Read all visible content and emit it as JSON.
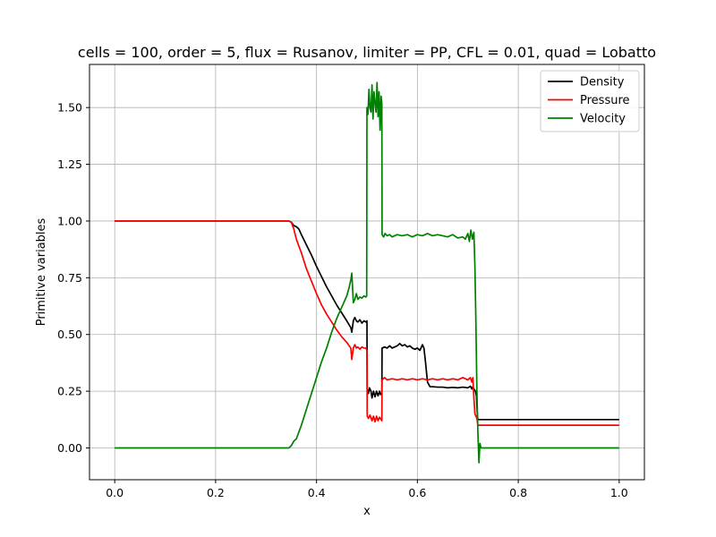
{
  "chart_data": {
    "type": "line",
    "title": "cells = 100, order = 5, flux = Rusanov, limiter = PP, CFL = 0.01, quad = Lobatto",
    "xlabel": "x",
    "ylabel": "Primitive variables",
    "xlim": [
      -0.05,
      1.05
    ],
    "ylim": [
      -0.14,
      1.69
    ],
    "xticks": [
      0.0,
      0.2,
      0.4,
      0.6,
      0.8,
      1.0
    ],
    "xtick_labels": [
      "0.0",
      "0.2",
      "0.4",
      "0.6",
      "0.8",
      "1.0"
    ],
    "yticks": [
      0.0,
      0.25,
      0.5,
      0.75,
      1.0,
      1.25,
      1.5
    ],
    "ytick_labels": [
      "0.00",
      "0.25",
      "0.50",
      "0.75",
      "1.00",
      "1.25",
      "1.50"
    ],
    "grid": true,
    "legend_position": "top-right",
    "series": [
      {
        "name": "Density",
        "color": "#000000",
        "points": [
          [
            0.0,
            1.0
          ],
          [
            0.345,
            1.0
          ],
          [
            0.35,
            0.995
          ],
          [
            0.355,
            0.98
          ],
          [
            0.36,
            0.975
          ],
          [
            0.365,
            0.965
          ],
          [
            0.37,
            0.94
          ],
          [
            0.38,
            0.895
          ],
          [
            0.39,
            0.85
          ],
          [
            0.4,
            0.8
          ],
          [
            0.41,
            0.755
          ],
          [
            0.42,
            0.71
          ],
          [
            0.43,
            0.67
          ],
          [
            0.44,
            0.63
          ],
          [
            0.45,
            0.595
          ],
          [
            0.46,
            0.56
          ],
          [
            0.468,
            0.53
          ],
          [
            0.47,
            0.51
          ],
          [
            0.473,
            0.56
          ],
          [
            0.476,
            0.575
          ],
          [
            0.479,
            0.56
          ],
          [
            0.482,
            0.555
          ],
          [
            0.486,
            0.565
          ],
          [
            0.49,
            0.55
          ],
          [
            0.494,
            0.56
          ],
          [
            0.498,
            0.555
          ],
          [
            0.5,
            0.56
          ],
          [
            0.5005,
            0.26
          ],
          [
            0.503,
            0.24
          ],
          [
            0.505,
            0.265
          ],
          [
            0.508,
            0.25
          ],
          [
            0.51,
            0.22
          ],
          [
            0.513,
            0.25
          ],
          [
            0.516,
            0.225
          ],
          [
            0.519,
            0.25
          ],
          [
            0.522,
            0.23
          ],
          [
            0.525,
            0.25
          ],
          [
            0.527,
            0.235
          ],
          [
            0.5295,
            0.24
          ],
          [
            0.53,
            0.44
          ],
          [
            0.535,
            0.445
          ],
          [
            0.54,
            0.44
          ],
          [
            0.545,
            0.45
          ],
          [
            0.55,
            0.44
          ],
          [
            0.56,
            0.45
          ],
          [
            0.565,
            0.46
          ],
          [
            0.57,
            0.45
          ],
          [
            0.575,
            0.455
          ],
          [
            0.58,
            0.445
          ],
          [
            0.585,
            0.45
          ],
          [
            0.59,
            0.44
          ],
          [
            0.595,
            0.435
          ],
          [
            0.6,
            0.44
          ],
          [
            0.605,
            0.43
          ],
          [
            0.61,
            0.455
          ],
          [
            0.613,
            0.44
          ],
          [
            0.616,
            0.38
          ],
          [
            0.62,
            0.29
          ],
          [
            0.625,
            0.27
          ],
          [
            0.63,
            0.27
          ],
          [
            0.64,
            0.268
          ],
          [
            0.65,
            0.268
          ],
          [
            0.66,
            0.265
          ],
          [
            0.67,
            0.267
          ],
          [
            0.68,
            0.265
          ],
          [
            0.69,
            0.268
          ],
          [
            0.7,
            0.265
          ],
          [
            0.705,
            0.272
          ],
          [
            0.708,
            0.26
          ],
          [
            0.71,
            0.27
          ],
          [
            0.712,
            0.26
          ],
          [
            0.715,
            0.25
          ],
          [
            0.717,
            0.23
          ],
          [
            0.719,
            0.14
          ],
          [
            0.72,
            0.125
          ],
          [
            0.73,
            0.125
          ],
          [
            1.0,
            0.125
          ]
        ]
      },
      {
        "name": "Pressure",
        "color": "#ff0000",
        "points": [
          [
            0.0,
            1.0
          ],
          [
            0.345,
            1.0
          ],
          [
            0.35,
            0.995
          ],
          [
            0.355,
            0.965
          ],
          [
            0.36,
            0.92
          ],
          [
            0.37,
            0.86
          ],
          [
            0.38,
            0.79
          ],
          [
            0.39,
            0.735
          ],
          [
            0.4,
            0.68
          ],
          [
            0.41,
            0.63
          ],
          [
            0.42,
            0.59
          ],
          [
            0.43,
            0.555
          ],
          [
            0.44,
            0.52
          ],
          [
            0.45,
            0.49
          ],
          [
            0.46,
            0.465
          ],
          [
            0.468,
            0.44
          ],
          [
            0.47,
            0.39
          ],
          [
            0.473,
            0.44
          ],
          [
            0.476,
            0.455
          ],
          [
            0.479,
            0.44
          ],
          [
            0.482,
            0.445
          ],
          [
            0.486,
            0.435
          ],
          [
            0.49,
            0.445
          ],
          [
            0.494,
            0.44
          ],
          [
            0.498,
            0.44
          ],
          [
            0.5,
            0.43
          ],
          [
            0.5005,
            0.14
          ],
          [
            0.503,
            0.13
          ],
          [
            0.506,
            0.145
          ],
          [
            0.51,
            0.12
          ],
          [
            0.513,
            0.14
          ],
          [
            0.516,
            0.115
          ],
          [
            0.519,
            0.14
          ],
          [
            0.522,
            0.12
          ],
          [
            0.525,
            0.135
          ],
          [
            0.5295,
            0.12
          ],
          [
            0.53,
            0.3
          ],
          [
            0.535,
            0.31
          ],
          [
            0.54,
            0.3
          ],
          [
            0.55,
            0.305
          ],
          [
            0.56,
            0.3
          ],
          [
            0.57,
            0.305
          ],
          [
            0.58,
            0.3
          ],
          [
            0.59,
            0.305
          ],
          [
            0.6,
            0.3
          ],
          [
            0.61,
            0.305
          ],
          [
            0.62,
            0.3
          ],
          [
            0.63,
            0.305
          ],
          [
            0.64,
            0.3
          ],
          [
            0.65,
            0.305
          ],
          [
            0.66,
            0.3
          ],
          [
            0.67,
            0.305
          ],
          [
            0.68,
            0.3
          ],
          [
            0.69,
            0.31
          ],
          [
            0.7,
            0.3
          ],
          [
            0.705,
            0.31
          ],
          [
            0.708,
            0.29
          ],
          [
            0.71,
            0.31
          ],
          [
            0.712,
            0.22
          ],
          [
            0.714,
            0.15
          ],
          [
            0.716,
            0.14
          ],
          [
            0.718,
            0.13
          ],
          [
            0.72,
            0.1
          ],
          [
            0.73,
            0.1
          ],
          [
            1.0,
            0.1
          ]
        ]
      },
      {
        "name": "Velocity",
        "color": "#008000",
        "points": [
          [
            0.0,
            0.0
          ],
          [
            0.345,
            0.0
          ],
          [
            0.35,
            0.01
          ],
          [
            0.355,
            0.03
          ],
          [
            0.36,
            0.04
          ],
          [
            0.37,
            0.1
          ],
          [
            0.38,
            0.17
          ],
          [
            0.39,
            0.24
          ],
          [
            0.4,
            0.31
          ],
          [
            0.41,
            0.38
          ],
          [
            0.42,
            0.44
          ],
          [
            0.43,
            0.51
          ],
          [
            0.44,
            0.57
          ],
          [
            0.45,
            0.62
          ],
          [
            0.46,
            0.67
          ],
          [
            0.465,
            0.71
          ],
          [
            0.468,
            0.74
          ],
          [
            0.47,
            0.77
          ],
          [
            0.473,
            0.64
          ],
          [
            0.476,
            0.655
          ],
          [
            0.479,
            0.68
          ],
          [
            0.482,
            0.655
          ],
          [
            0.486,
            0.665
          ],
          [
            0.49,
            0.66
          ],
          [
            0.494,
            0.67
          ],
          [
            0.498,
            0.665
          ],
          [
            0.4995,
            0.67
          ],
          [
            0.5,
            1.5
          ],
          [
            0.502,
            1.47
          ],
          [
            0.504,
            1.58
          ],
          [
            0.506,
            1.5
          ],
          [
            0.508,
            1.48
          ],
          [
            0.51,
            1.6
          ],
          [
            0.512,
            1.45
          ],
          [
            0.514,
            1.57
          ],
          [
            0.516,
            1.52
          ],
          [
            0.518,
            1.48
          ],
          [
            0.52,
            1.61
          ],
          [
            0.522,
            1.46
          ],
          [
            0.524,
            1.57
          ],
          [
            0.526,
            1.4
          ],
          [
            0.528,
            1.55
          ],
          [
            0.5295,
            1.52
          ],
          [
            0.53,
            0.94
          ],
          [
            0.533,
            0.93
          ],
          [
            0.536,
            0.945
          ],
          [
            0.54,
            0.935
          ],
          [
            0.545,
            0.94
          ],
          [
            0.55,
            0.93
          ],
          [
            0.56,
            0.94
          ],
          [
            0.57,
            0.935
          ],
          [
            0.58,
            0.94
          ],
          [
            0.59,
            0.93
          ],
          [
            0.6,
            0.94
          ],
          [
            0.61,
            0.935
          ],
          [
            0.62,
            0.945
          ],
          [
            0.63,
            0.935
          ],
          [
            0.64,
            0.94
          ],
          [
            0.65,
            0.935
          ],
          [
            0.66,
            0.93
          ],
          [
            0.67,
            0.94
          ],
          [
            0.68,
            0.925
          ],
          [
            0.69,
            0.93
          ],
          [
            0.695,
            0.92
          ],
          [
            0.7,
            0.945
          ],
          [
            0.703,
            0.91
          ],
          [
            0.706,
            0.96
          ],
          [
            0.709,
            0.92
          ],
          [
            0.712,
            0.95
          ],
          [
            0.714,
            0.8
          ],
          [
            0.716,
            0.55
          ],
          [
            0.718,
            0.25
          ],
          [
            0.72,
            0.06
          ],
          [
            0.722,
            -0.065
          ],
          [
            0.724,
            0.02
          ],
          [
            0.726,
            0.0
          ],
          [
            1.0,
            0.0
          ]
        ]
      }
    ]
  }
}
